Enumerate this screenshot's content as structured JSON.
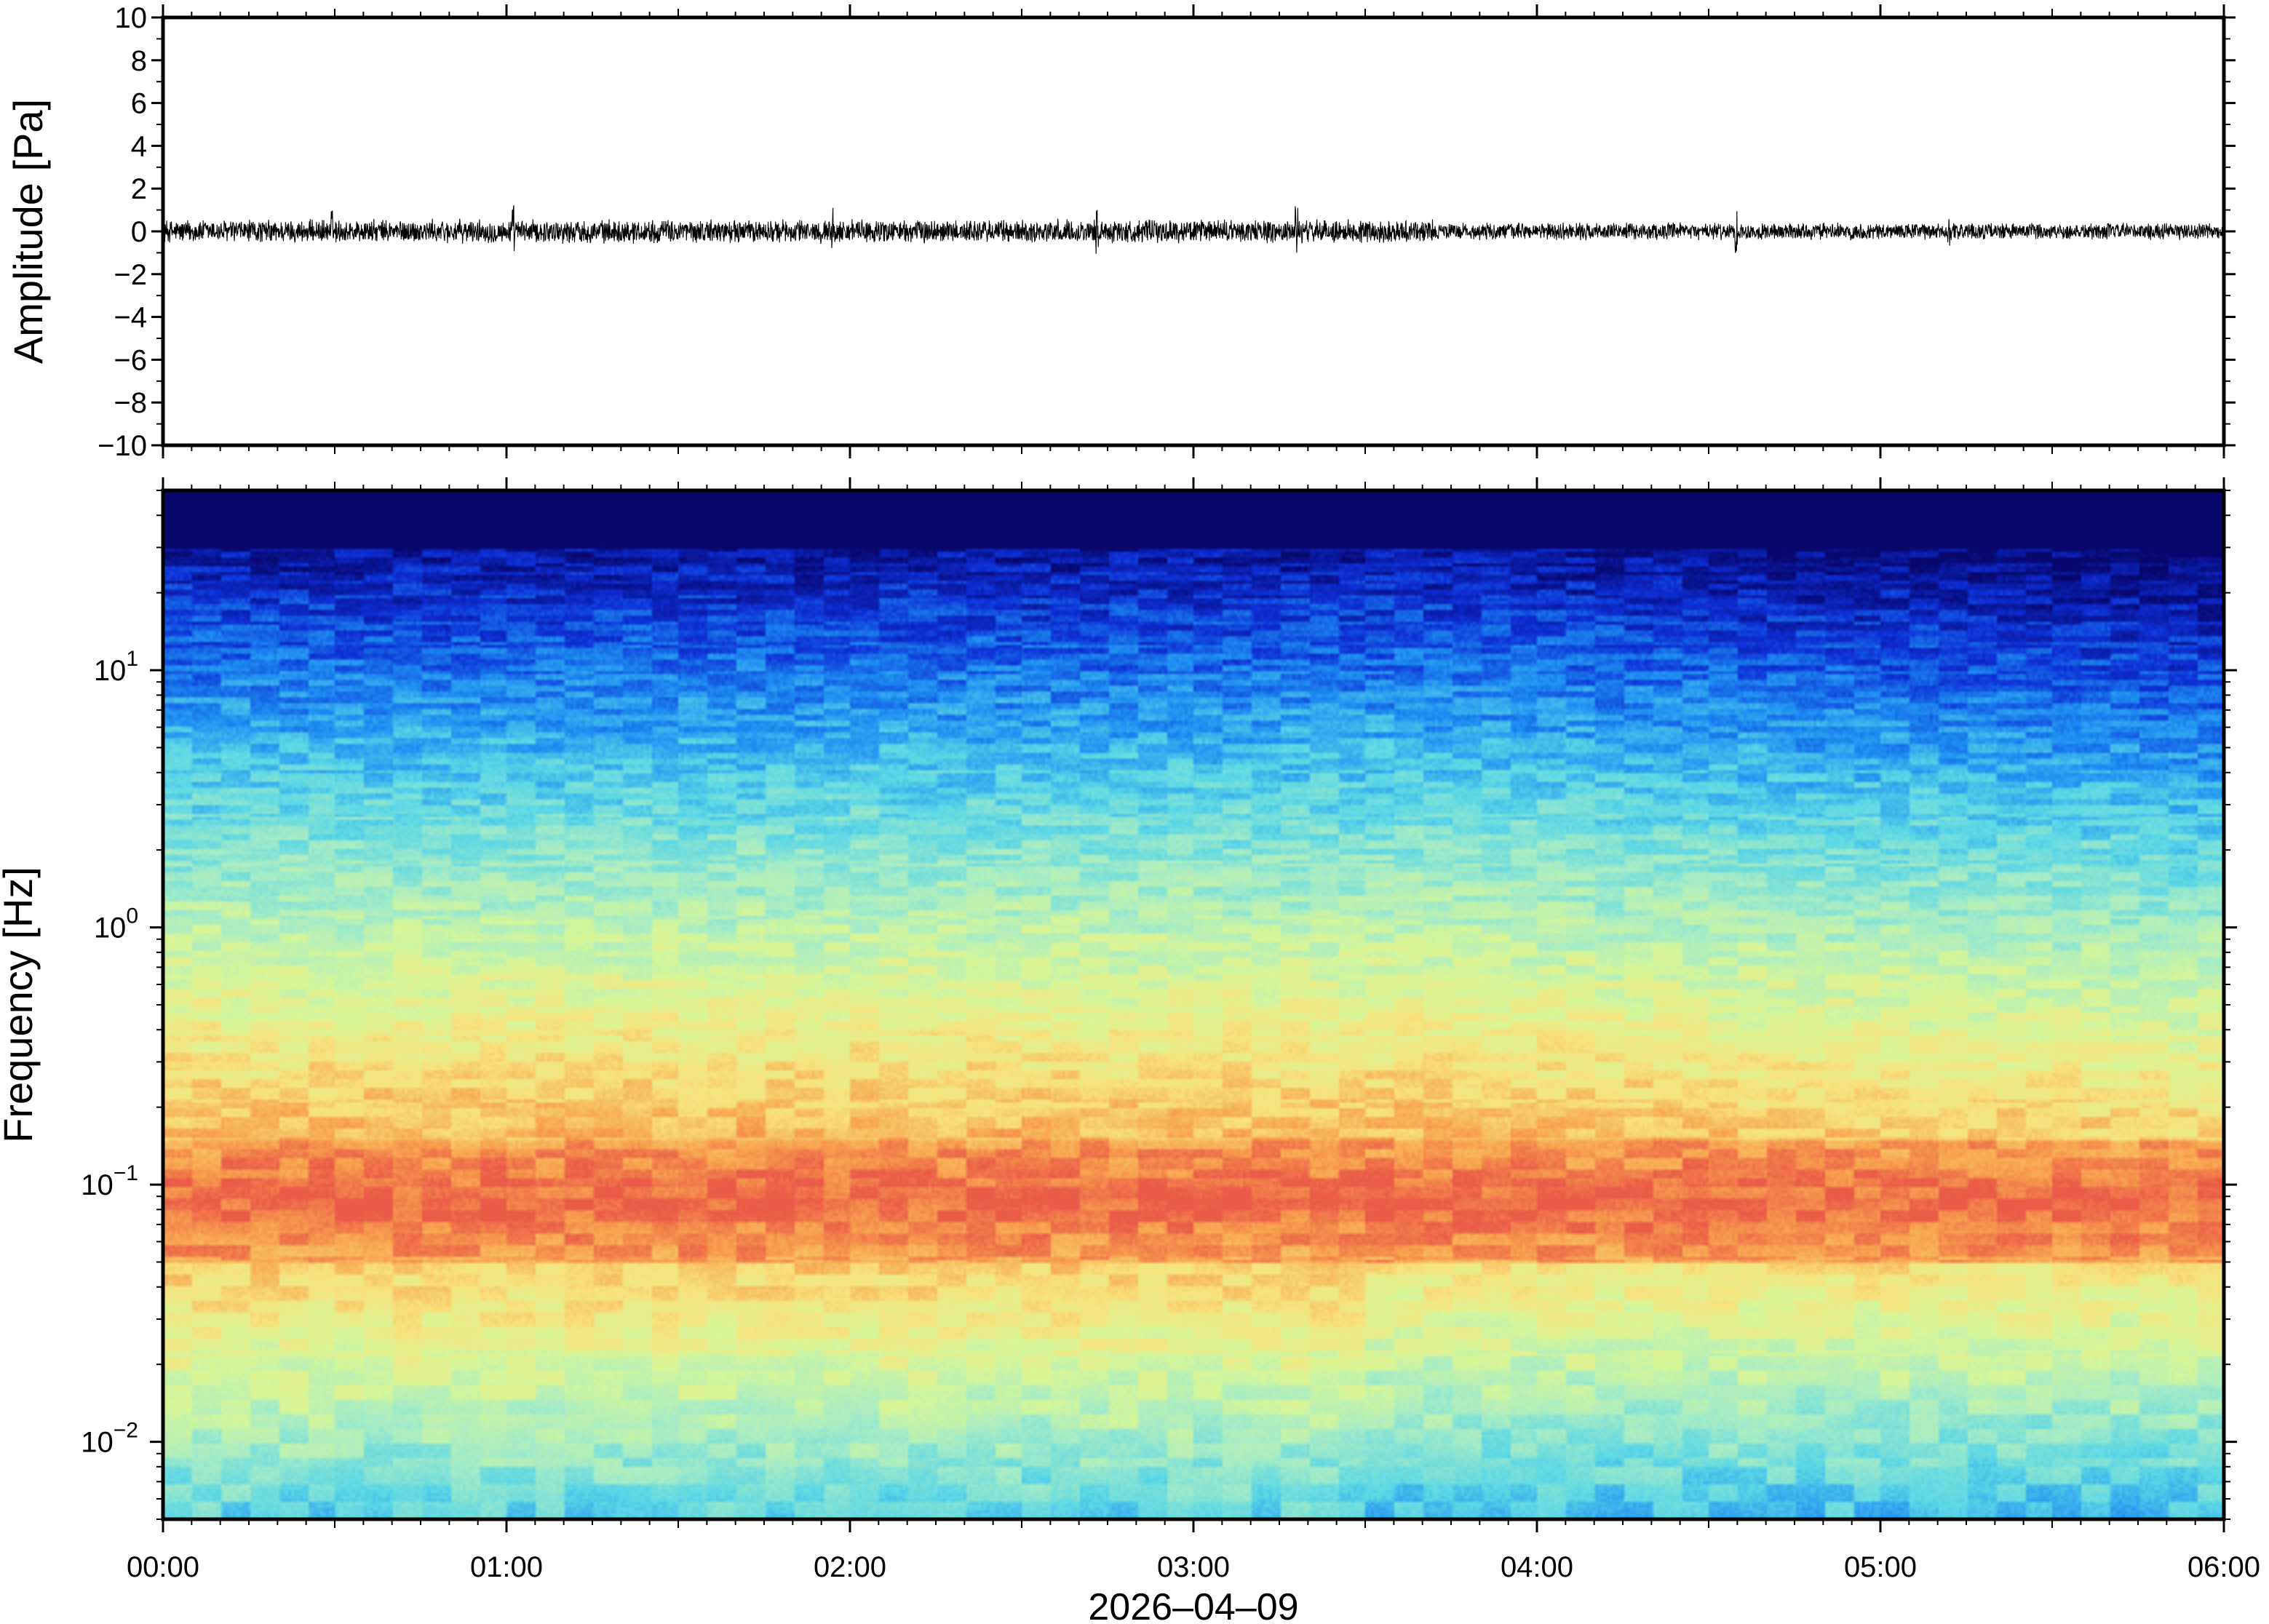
{
  "chart_data": [
    {
      "type": "line",
      "ylabel": "Amplitude [Pa]",
      "ylim": [
        -10,
        10
      ],
      "yticks": [
        "10",
        "8",
        "6",
        "4",
        "2",
        "0",
        "−2",
        "−4",
        "−6",
        "−8",
        "−10"
      ],
      "yvalues": [
        10,
        8,
        6,
        4,
        2,
        0,
        -2,
        -4,
        -6,
        -8,
        -10
      ],
      "x_range_hours": [
        0,
        6
      ],
      "series": [
        {
          "typical_peak_pa": 0.6,
          "max_spike_pa": 1.4,
          "color": "#000000"
        }
      ],
      "spike_hours": [
        0.49,
        1.95,
        2.72,
        4.58,
        1.02,
        3.3,
        5.2
      ]
    },
    {
      "type": "heatmap",
      "ylabel": "Frequency [Hz]",
      "yscale": "log",
      "ylim": [
        0.005,
        50
      ],
      "yticks": [
        {
          "base": "10",
          "exp": "1",
          "value": 10
        },
        {
          "base": "10",
          "exp": "0",
          "value": 1
        },
        {
          "base": "10",
          "exp": "−1",
          "value": 0.1
        },
        {
          "base": "10",
          "exp": "−2",
          "value": 0.01
        }
      ],
      "colormap": [
        "#08066b",
        "#0d2fd6",
        "#1f8ff2",
        "#5ad6e6",
        "#a4ecc8",
        "#d8f596",
        "#f7e27e",
        "#f8a551",
        "#ea5a47"
      ],
      "peak_band_hz": [
        0.05,
        0.15
      ],
      "quieter_after_hours": 3.7
    }
  ],
  "x_axis": {
    "ticks": [
      "00:00",
      "01:00",
      "02:00",
      "03:00",
      "04:00",
      "05:00",
      "06:00"
    ],
    "hours": [
      0,
      1,
      2,
      3,
      4,
      5,
      6
    ],
    "date": "2026–04–09"
  }
}
